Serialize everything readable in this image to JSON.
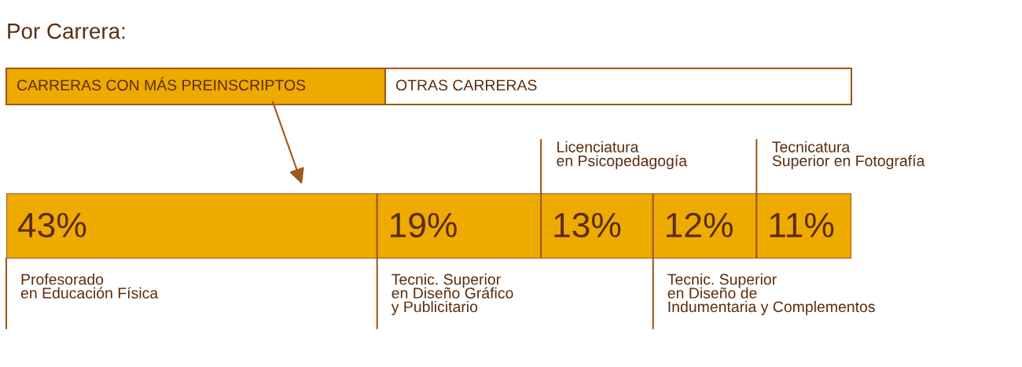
{
  "chart_data": {
    "type": "bar",
    "orientation": "horizontal",
    "stacked": true,
    "title": "Por Carrera:",
    "categories": [
      null
    ],
    "xlim": [
      0,
      98
    ],
    "series": [
      {
        "name": "Profesorado\nen Educación Física",
        "color": "#efaa00",
        "values": [
          43
        ],
        "value_labels": [
          "43%"
        ]
      },
      {
        "name": "Tecnic. Superior\nen Diseño Gráfico\ny Publicitario",
        "color": "#efaa00",
        "values": [
          19
        ],
        "value_labels": [
          "19%"
        ]
      },
      {
        "name": "Licenciatura\nen Psicopedagogía",
        "color": "#efaa00",
        "values": [
          13
        ],
        "value_labels": [
          "13%"
        ]
      },
      {
        "name": "Tecnic. Superior\nen Diseño de\nIndumentaria y Complementos",
        "color": "#efaa00",
        "values": [
          12
        ],
        "value_labels": [
          "12%"
        ]
      },
      {
        "name": "Tecnicatura\nSuperior en Fotografía",
        "color": "#efaa00",
        "values": [
          11
        ],
        "value_labels": [
          "11%"
        ]
      }
    ],
    "annotations": [
      "CARRERAS CON MÁS PREINSCRIPTOS",
      "OTRAS CARRERAS"
    ]
  }
}
